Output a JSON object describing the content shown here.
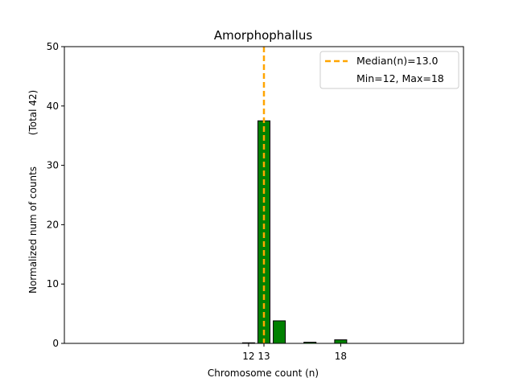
{
  "chart_data": {
    "type": "bar",
    "title": "Amorphophallus",
    "xlabel": "Chromosome count (n)",
    "ylabel": "Normalized num of counts",
    "ylabel_extra": "(Total 42)",
    "xlim": [
      0,
      26
    ],
    "ylim": [
      0,
      50
    ],
    "yticks": [
      0,
      10,
      20,
      30,
      40,
      50
    ],
    "xticks": [
      12,
      13,
      18
    ],
    "bars": [
      {
        "x": 12,
        "value": 0.1
      },
      {
        "x": 13,
        "value": 37.5
      },
      {
        "x": 14,
        "value": 3.8
      },
      {
        "x": 16,
        "value": 0.2
      },
      {
        "x": 18,
        "value": 0.6
      }
    ],
    "bar_color": "#008000",
    "median": 13.0,
    "median_color": "#FFA500",
    "legend": {
      "entries": [
        "Median(n)=13.0",
        "Min=12, Max=18"
      ],
      "placement": "top-right"
    },
    "grid": false
  }
}
